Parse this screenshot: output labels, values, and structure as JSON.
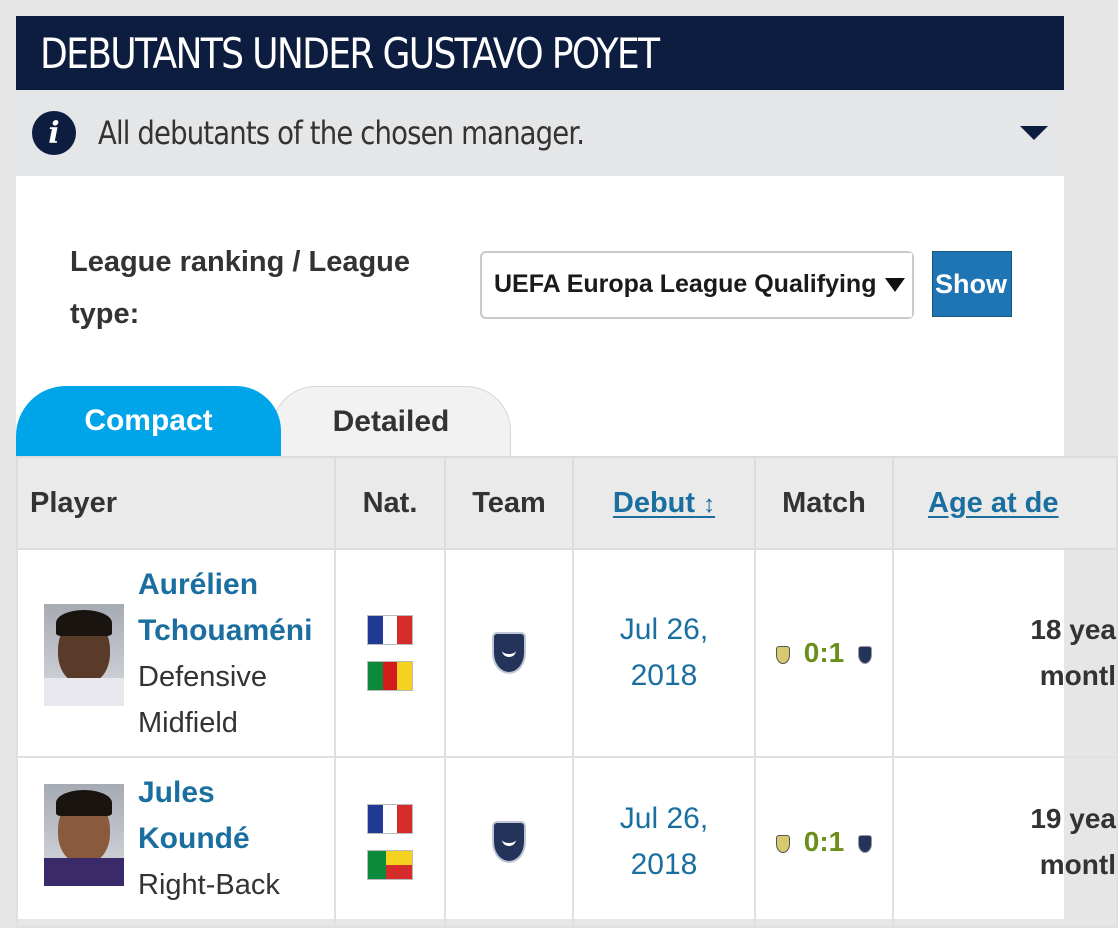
{
  "header": {
    "title": "DEBUTANTS UNDER GUSTAVO POYET"
  },
  "info": {
    "icon": "info-icon",
    "text": "All debutants of the chosen manager."
  },
  "filter": {
    "label": "League ranking / League type:",
    "selected": "UEFA Europa League Qualifying",
    "button": "Show"
  },
  "tabs": {
    "compact": "Compact",
    "detailed": "Detailed",
    "active": "compact"
  },
  "table": {
    "columns": {
      "player": "Player",
      "nat": "Nat.",
      "team": "Team",
      "debut": "Debut",
      "debut_sort": "↕",
      "match": "Match",
      "age": "Age at de"
    },
    "rows": [
      {
        "name_line1": "Aurélien",
        "name_line2": "Tchouaméni",
        "position_line1": "Defensive",
        "position_line2": "Midfield",
        "nationalities": [
          "France",
          "Cameroon"
        ],
        "team_icon": "bordeaux-crest-icon",
        "debut_line1": "Jul 26,",
        "debut_line2": "2018",
        "score": "0:1",
        "age_line1": "18 yea",
        "age_line2": "montl"
      },
      {
        "name_line1": "Jules",
        "name_line2": "Koundé",
        "position_line1": "Right-Back",
        "nationalities": [
          "France",
          "Benin"
        ],
        "team_icon": "bordeaux-crest-icon",
        "debut_line1": "Jul 26,",
        "debut_line2": "2018",
        "score": "0:1",
        "age_line1": "19 yea",
        "age_line2": "montl"
      }
    ]
  },
  "colors": {
    "header_bg": "#0d1d3f",
    "tab_active": "#00a4e8",
    "button_bg": "#1f75b3",
    "link": "#1a6fa0",
    "score": "#6b8f1a"
  }
}
